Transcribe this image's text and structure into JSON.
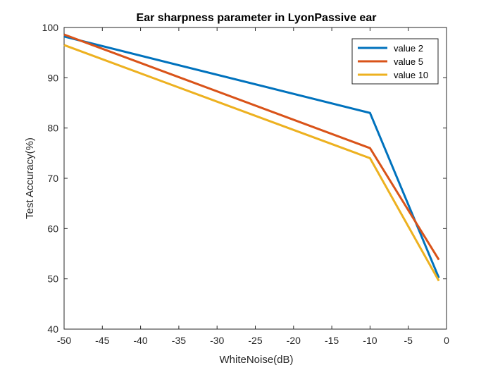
{
  "chart_data": {
    "type": "line",
    "title": "Ear sharpness parameter in LyonPassive ear",
    "xlabel": "WhiteNoise(dB)",
    "ylabel": "Test Accuracy(%)",
    "xlim": [
      -50,
      0
    ],
    "ylim": [
      40,
      100
    ],
    "xticks": [
      -50,
      -45,
      -40,
      -35,
      -30,
      -25,
      -20,
      -15,
      -10,
      -5,
      0
    ],
    "yticks": [
      40,
      50,
      60,
      70,
      80,
      90,
      100
    ],
    "grid": false,
    "legend_position": "top-right",
    "x": [
      -50,
      -10,
      -1
    ],
    "series": [
      {
        "name": "value 2",
        "color": "#0072BD",
        "values": [
          98.2,
          83.0,
          50.2
        ]
      },
      {
        "name": "value 5",
        "color": "#D95319",
        "values": [
          98.6,
          76.0,
          53.8
        ]
      },
      {
        "name": "value 10",
        "color": "#EDB120",
        "values": [
          96.5,
          74.0,
          49.6
        ]
      }
    ]
  }
}
